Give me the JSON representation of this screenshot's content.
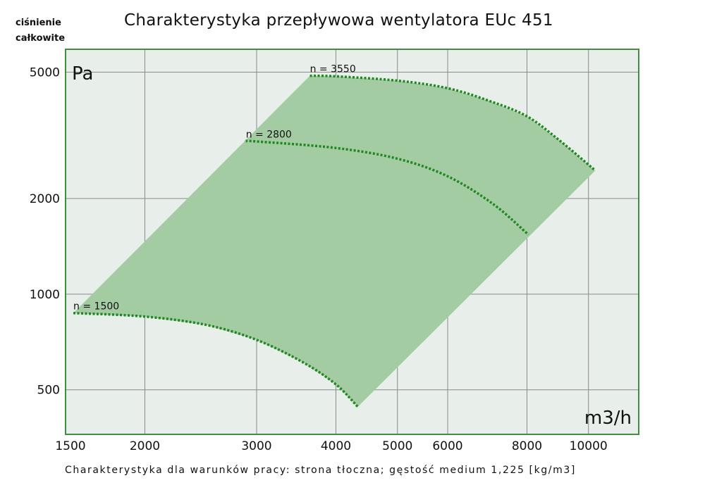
{
  "chart_data": {
    "type": "line",
    "title": "Charakterystyka przepływowa wentylatora EUc 451",
    "ylabel": "ciśnienie całkowite",
    "yunit": "Pa",
    "xunit": "m3/h",
    "footnote": "Charakterystyka dla warunków pracy: strona tłoczna; gęstość medium 1,225 [kg/m3]",
    "xscale": "log",
    "yscale": "log",
    "xlim": [
      1500,
      12000
    ],
    "ylim": [
      362,
      5900
    ],
    "grid": true,
    "xticks": [
      1500,
      2000,
      3000,
      4000,
      5000,
      6000,
      8000,
      10000
    ],
    "yticks": [
      500,
      1000,
      2000,
      5000
    ],
    "series": [
      {
        "name": "n = 3550",
        "x": [
          3640,
          4000,
          5000,
          6000,
          7000,
          8000,
          9000,
          10250
        ],
        "y": [
          4870,
          4850,
          4700,
          4450,
          4050,
          3630,
          3050,
          2450
        ]
      },
      {
        "name": "n = 2800",
        "x": [
          2885,
          3000,
          4000,
          5000,
          6000,
          7080,
          8040
        ],
        "y": [
          3030,
          3025,
          2885,
          2670,
          2350,
          1920,
          1540
        ]
      },
      {
        "name": "n = 1500",
        "x": [
          1543,
          2000,
          2500,
          3000,
          3550,
          4000,
          4330
        ],
        "y": [
          872,
          850,
          800,
          718,
          610,
          520,
          442
        ]
      }
    ],
    "colors": {
      "plot_bg": "#e8eeea",
      "area": "#a3cca3",
      "curve": "#1c8a1c",
      "frame": "#3f8f3f",
      "grid": "#8a8a8a"
    }
  }
}
